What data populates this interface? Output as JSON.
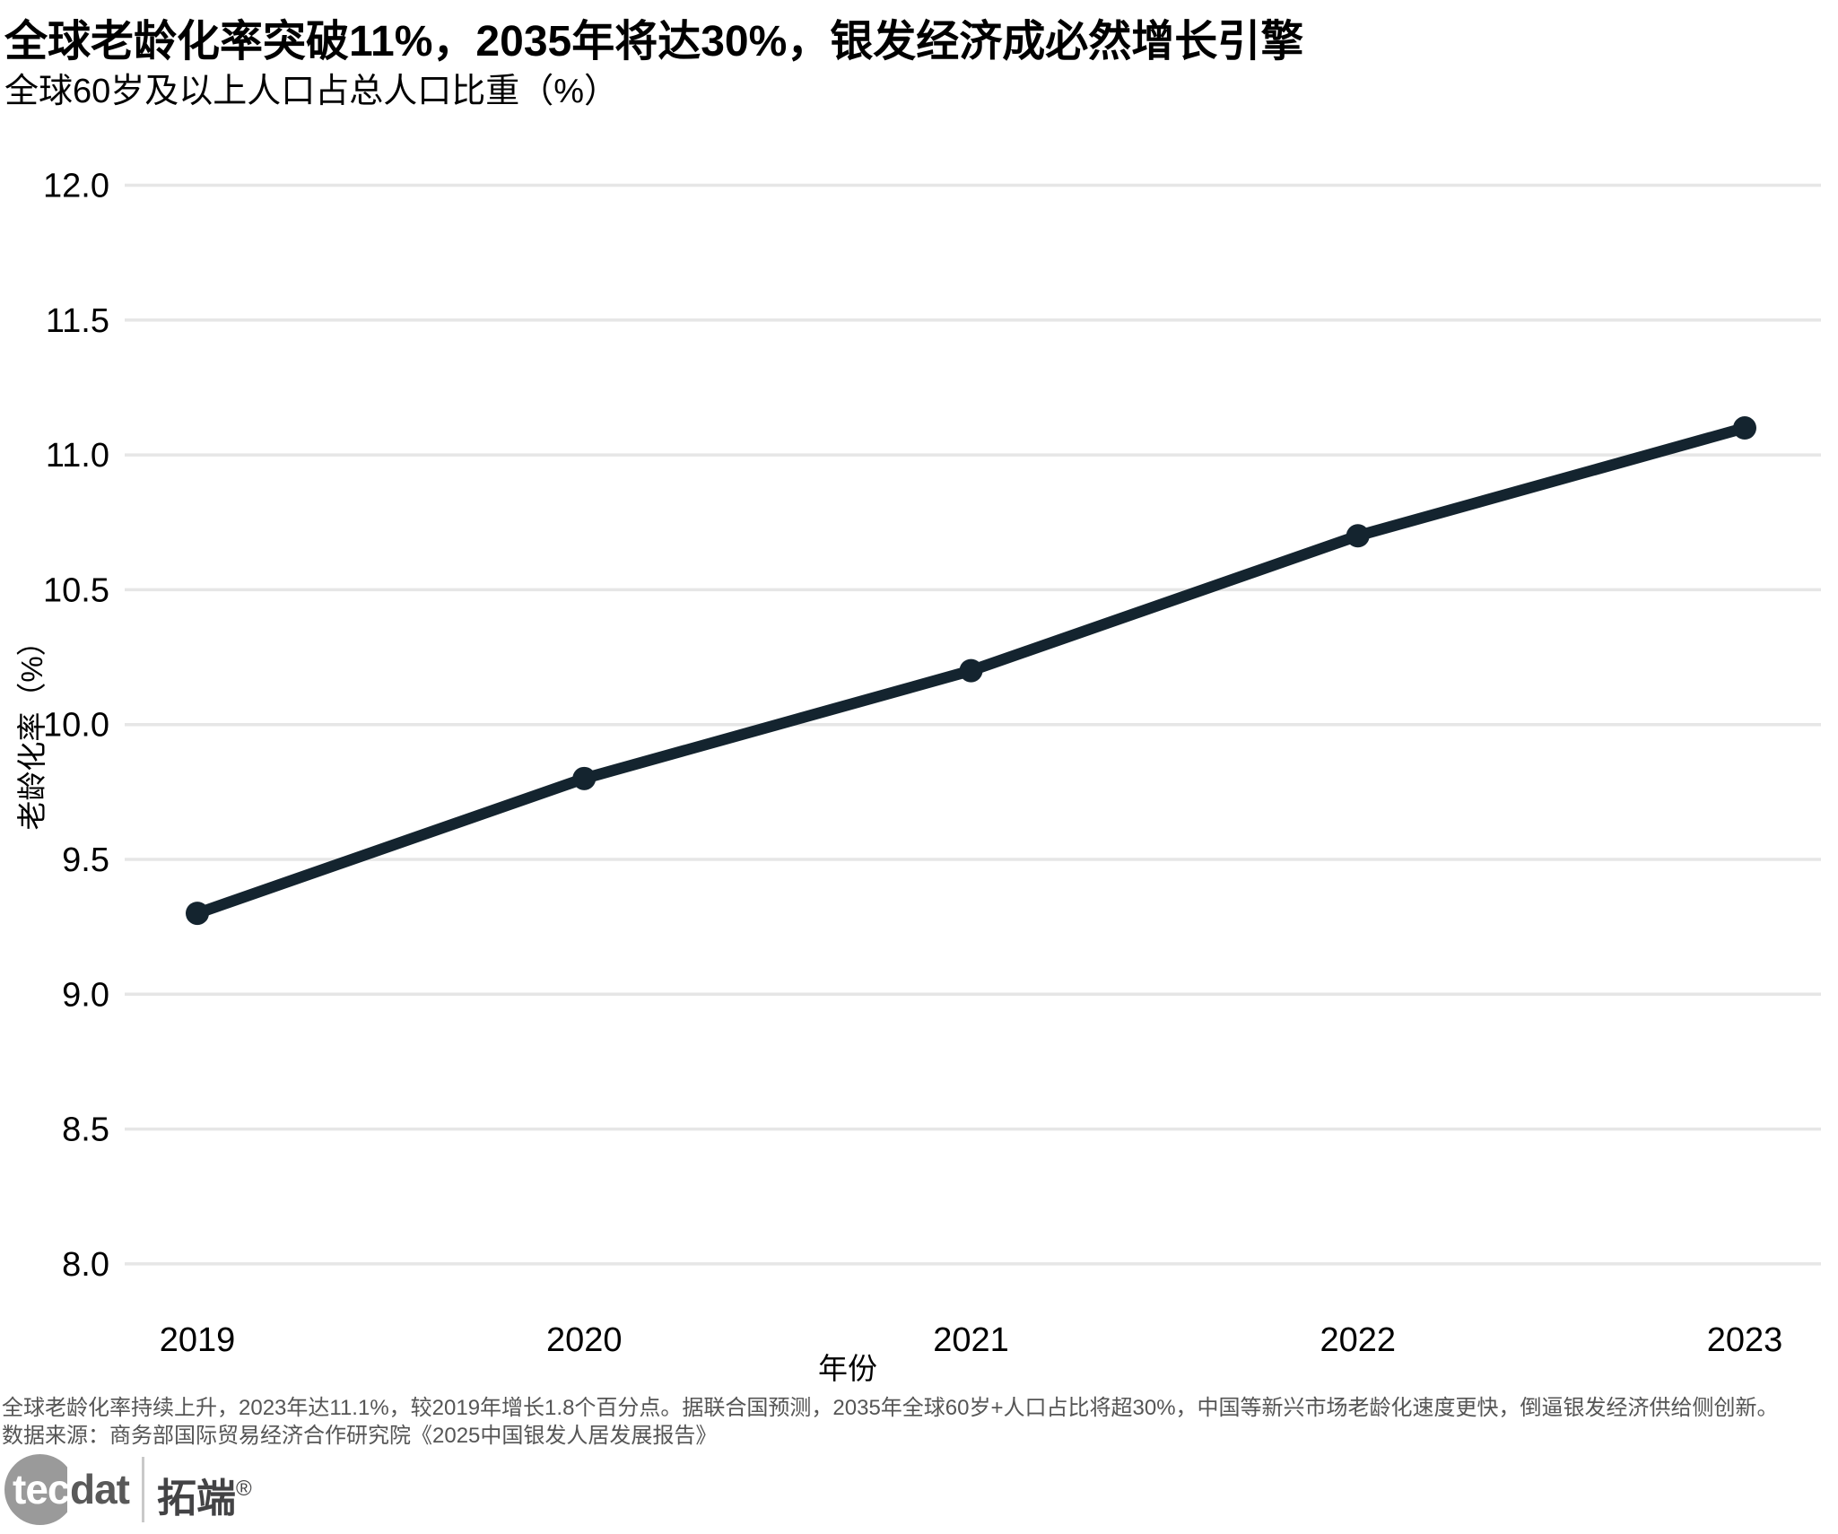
{
  "title": "全球老龄化率突破11%，2035年将达30%，银发经济成必然增长引擎",
  "subtitle": "全球60岁及以上人口占总人口比重（%）",
  "chart_data": {
    "type": "line",
    "title": "全球老龄化率突破11%，2035年将达30%，银发经济成必然增长引擎",
    "subtitle": "全球60岁及以上人口占总人口比重（%）",
    "x": [
      2019,
      2020,
      2021,
      2022,
      2023
    ],
    "xtick_labels": [
      "2019",
      "2020",
      "2021",
      "2022",
      "2023"
    ],
    "values": [
      9.3,
      9.8,
      10.2,
      10.7,
      11.1
    ],
    "xlabel": "年份",
    "ylabel": "老龄化率（%）",
    "ylim": [
      8.0,
      12.0
    ],
    "yticks": [
      12.0,
      11.5,
      11.0,
      10.5,
      10.0,
      9.5,
      9.0,
      8.5,
      8.0
    ],
    "ytick_labels": [
      "12.0",
      "11.5",
      "11.0",
      "10.5",
      "10.0",
      "9.5",
      "9.0",
      "8.5",
      "8.0"
    ],
    "grid": "horizontal gridlines only, no axis spines",
    "legend_position": "none",
    "marker": "circle"
  },
  "footer": {
    "note": "全球老龄化率持续上升，2023年达11.1%，较2019年增长1.8个百分点。据联合国预测，2035年全球60岁+人口占比将超30%，中国等新兴市场老龄化速度更快，倒逼银发经济供给侧创新。",
    "source": "数据来源：商务部国际贸易经济合作研究院《2025中国银发人居发展报告》"
  },
  "logo": {
    "tec": "tec",
    "dat": "dat",
    "brand_cn": "拓端",
    "reg_mark": "®"
  },
  "colors": {
    "line": "#14242f",
    "marker": "#14242f",
    "grid": "#e6e6e6",
    "text": "#000000",
    "footnote": "#555555",
    "logo_circle": "#9a9a9a",
    "logo_tec": "#ffffff",
    "logo_dat": "#595959",
    "logo_brand": "#434345",
    "logo_divider": "#c9c9c9",
    "background": "#ffffff"
  }
}
